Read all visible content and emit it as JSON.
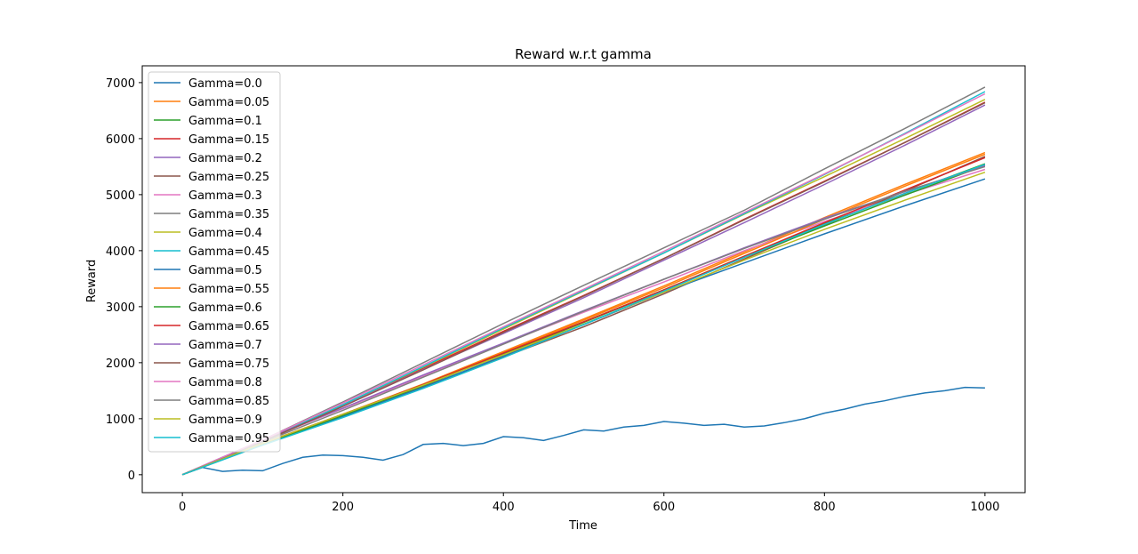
{
  "chart_data": {
    "type": "line",
    "title": "Reward w.r.t gamma",
    "xlabel": "Time",
    "ylabel": "Reward",
    "xlim": [
      -50,
      1050
    ],
    "ylim": [
      -320,
      7300
    ],
    "xticks": [
      0,
      200,
      400,
      600,
      800,
      1000
    ],
    "yticks": [
      0,
      1000,
      2000,
      3000,
      4000,
      5000,
      6000,
      7000
    ],
    "grid": false,
    "legend_position": "upper-left",
    "series": [
      {
        "name": "Gamma=0.0",
        "color": "#1f77b4",
        "x": [
          0,
          25,
          50,
          75,
          100,
          125,
          150,
          175,
          200,
          225,
          250,
          275,
          300,
          325,
          350,
          375,
          400,
          425,
          450,
          475,
          500,
          525,
          550,
          575,
          600,
          625,
          650,
          675,
          700,
          725,
          750,
          775,
          800,
          825,
          850,
          875,
          900,
          925,
          950,
          975,
          1000
        ],
        "y": [
          0,
          130,
          60,
          80,
          70,
          200,
          310,
          350,
          340,
          310,
          260,
          360,
          540,
          560,
          520,
          560,
          680,
          660,
          610,
          700,
          800,
          780,
          850,
          880,
          950,
          920,
          880,
          900,
          850,
          870,
          930,
          1000,
          1100,
          1170,
          1260,
          1320,
          1400,
          1460,
          1500,
          1560,
          1550
        ]
      },
      {
        "name": "Gamma=0.05",
        "color": "#ff7f0e",
        "x": [
          0,
          100,
          200,
          300,
          400,
          500,
          600,
          700,
          800,
          900,
          1000
        ],
        "y": [
          0,
          550,
          1080,
          1620,
          2200,
          2780,
          3370,
          3980,
          4590,
          5180,
          5750
        ]
      },
      {
        "name": "Gamma=0.1",
        "color": "#2ca02c",
        "x": [
          0,
          100,
          200,
          300,
          400,
          500,
          600,
          700,
          800,
          900,
          1000
        ],
        "y": [
          0,
          550,
          1060,
          1600,
          2160,
          2730,
          3300,
          3900,
          4480,
          5020,
          5550
        ]
      },
      {
        "name": "Gamma=0.15",
        "color": "#d62728",
        "x": [
          0,
          100,
          200,
          300,
          400,
          500,
          600,
          700,
          800,
          900,
          1000
        ],
        "y": [
          0,
          580,
          1240,
          1900,
          2560,
          3200,
          3860,
          4560,
          5240,
          5930,
          6650
        ]
      },
      {
        "name": "Gamma=0.2",
        "color": "#9467bd",
        "x": [
          0,
          100,
          200,
          300,
          400,
          500,
          600,
          700,
          800,
          900,
          1000
        ],
        "y": [
          0,
          590,
          1230,
          1880,
          2520,
          3160,
          3830,
          4500,
          5180,
          5880,
          6600
        ]
      },
      {
        "name": "Gamma=0.25",
        "color": "#8c564b",
        "x": [
          0,
          100,
          200,
          300,
          400,
          500,
          600,
          700,
          800,
          900,
          1000
        ],
        "y": [
          0,
          550,
          1060,
          1570,
          2100,
          2640,
          3230,
          3850,
          4460,
          5060,
          5680
        ]
      },
      {
        "name": "Gamma=0.3",
        "color": "#e377c2",
        "x": [
          0,
          100,
          200,
          300,
          400,
          500,
          600,
          700,
          800,
          900,
          1000
        ],
        "y": [
          0,
          610,
          1180,
          1760,
          2340,
          2900,
          3440,
          4000,
          4520,
          5000,
          5450
        ]
      },
      {
        "name": "Gamma=0.35",
        "color": "#7f7f7f",
        "x": [
          0,
          100,
          200,
          300,
          400,
          500,
          600,
          700,
          800,
          900,
          1000
        ],
        "y": [
          0,
          620,
          1300,
          2000,
          2700,
          3380,
          4050,
          4720,
          5460,
          6180,
          6920
        ]
      },
      {
        "name": "Gamma=0.4",
        "color": "#bcbd22",
        "x": [
          0,
          100,
          200,
          300,
          400,
          500,
          600,
          700,
          800,
          900,
          1000
        ],
        "y": [
          0,
          600,
          1250,
          1920,
          2600,
          3280,
          3960,
          4650,
          5320,
          6000,
          6700
        ]
      },
      {
        "name": "Gamma=0.45",
        "color": "#17becf",
        "x": [
          0,
          100,
          200,
          300,
          400,
          500,
          600,
          700,
          800,
          900,
          1000
        ],
        "y": [
          0,
          600,
          1250,
          1930,
          2620,
          3290,
          3960,
          4660,
          5360,
          6090,
          6840
        ]
      },
      {
        "name": "Gamma=0.5",
        "color": "#1f77b4",
        "x": [
          0,
          100,
          200,
          300,
          400,
          500,
          600,
          700,
          800,
          900,
          1000
        ],
        "y": [
          0,
          540,
          1040,
          1560,
          2120,
          2680,
          3260,
          3780,
          4300,
          4800,
          5280
        ]
      },
      {
        "name": "Gamma=0.55",
        "color": "#ff7f0e",
        "x": [
          0,
          100,
          200,
          300,
          400,
          500,
          600,
          700,
          800,
          900,
          1000
        ],
        "y": [
          0,
          560,
          1080,
          1600,
          2180,
          2760,
          3340,
          3950,
          4560,
          5150,
          5720
        ]
      },
      {
        "name": "Gamma=0.6",
        "color": "#2ca02c",
        "x": [
          0,
          100,
          200,
          300,
          400,
          500,
          600,
          700,
          800,
          900,
          1000
        ],
        "y": [
          0,
          540,
          1060,
          1590,
          2150,
          2720,
          3300,
          3880,
          4440,
          4990,
          5520
        ]
      },
      {
        "name": "Gamma=0.65",
        "color": "#d62728",
        "x": [
          0,
          100,
          200,
          300,
          400,
          500,
          600,
          700,
          800,
          900,
          1000
        ],
        "y": [
          0,
          560,
          1080,
          1610,
          2170,
          2730,
          3300,
          3900,
          4500,
          5080,
          5660
        ]
      },
      {
        "name": "Gamma=0.7",
        "color": "#9467bd",
        "x": [
          0,
          100,
          200,
          300,
          400,
          500,
          600,
          700,
          800,
          900,
          1000
        ],
        "y": [
          0,
          620,
          1190,
          1780,
          2350,
          2930,
          3490,
          4050,
          4580,
          5050,
          5520
        ]
      },
      {
        "name": "Gamma=0.75",
        "color": "#8c564b",
        "x": [
          0,
          100,
          200,
          300,
          400,
          500,
          600,
          700,
          800,
          900,
          1000
        ],
        "y": [
          0,
          590,
          1220,
          1870,
          2540,
          3190,
          3860,
          4550,
          5230,
          5930,
          6640
        ]
      },
      {
        "name": "Gamma=0.8",
        "color": "#e377c2",
        "x": [
          0,
          100,
          200,
          300,
          400,
          500,
          600,
          700,
          800,
          900,
          1000
        ],
        "y": [
          0,
          620,
          1280,
          1960,
          2640,
          3310,
          3990,
          4680,
          5370,
          6080,
          6800
        ]
      },
      {
        "name": "Gamma=0.85",
        "color": "#7f7f7f",
        "x": [
          0,
          100,
          200,
          300,
          400,
          500,
          600,
          700,
          800,
          900,
          1000
        ],
        "y": [
          0,
          580,
          1150,
          1740,
          2330,
          2920,
          3490,
          4040,
          4560,
          5060,
          5500
        ]
      },
      {
        "name": "Gamma=0.9",
        "color": "#bcbd22",
        "x": [
          0,
          100,
          200,
          300,
          400,
          500,
          600,
          700,
          800,
          900,
          1000
        ],
        "y": [
          0,
          560,
          1080,
          1600,
          2140,
          2690,
          3260,
          3830,
          4380,
          4900,
          5400
        ]
      },
      {
        "name": "Gamma=0.95",
        "color": "#17becf",
        "x": [
          0,
          100,
          200,
          300,
          400,
          500,
          600,
          700,
          800,
          900,
          1000
        ],
        "y": [
          0,
          530,
          1020,
          1540,
          2090,
          2680,
          3280,
          3880,
          4470,
          5020,
          5540
        ]
      }
    ]
  }
}
